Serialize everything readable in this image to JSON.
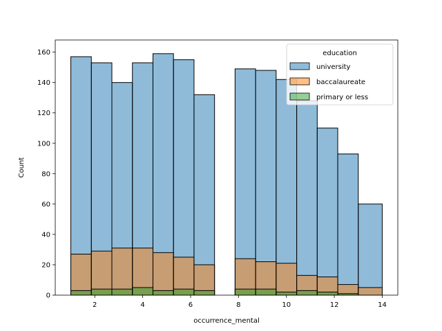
{
  "chart_data": {
    "type": "histogram",
    "xlabel": "occurrence_mental",
    "ylabel": "Count",
    "xlim": [
      0.35,
      14.65
    ],
    "ylim": [
      0,
      168
    ],
    "x_ticks": [
      2,
      4,
      6,
      8,
      10,
      12,
      14
    ],
    "y_ticks": [
      0,
      20,
      40,
      60,
      80,
      100,
      120,
      140,
      160
    ],
    "legend": {
      "title": "education",
      "placement": "top-right"
    },
    "bins": [
      [
        1,
        1.857
      ],
      [
        1.857,
        2.714
      ],
      [
        2.714,
        3.571
      ],
      [
        3.571,
        4.429
      ],
      [
        4.429,
        5.286
      ],
      [
        5.286,
        6.143
      ],
      [
        6.143,
        7.0
      ],
      [
        7.0,
        7.857
      ],
      [
        7.857,
        8.714
      ],
      [
        8.714,
        9.571
      ],
      [
        9.571,
        10.429
      ],
      [
        10.429,
        11.286
      ],
      [
        11.286,
        12.143
      ],
      [
        12.143,
        13.0
      ],
      [
        13.0,
        14.0
      ]
    ],
    "series": [
      {
        "name": "university",
        "color": "#1f77b4",
        "values": [
          157,
          153,
          140,
          153,
          159,
          155,
          132,
          0,
          149,
          148,
          142,
          128,
          110,
          93,
          60
        ]
      },
      {
        "name": "baccalaureate",
        "color": "#ff7f0e",
        "values": [
          27,
          29,
          31,
          31,
          28,
          25,
          20,
          0,
          24,
          22,
          21,
          13,
          12,
          7,
          5
        ]
      },
      {
        "name": "primary or less",
        "color": "#2ca02c",
        "values": [
          3,
          4,
          4,
          5,
          3,
          4,
          3,
          0,
          4,
          4,
          2,
          3,
          2,
          1,
          0
        ]
      }
    ]
  }
}
